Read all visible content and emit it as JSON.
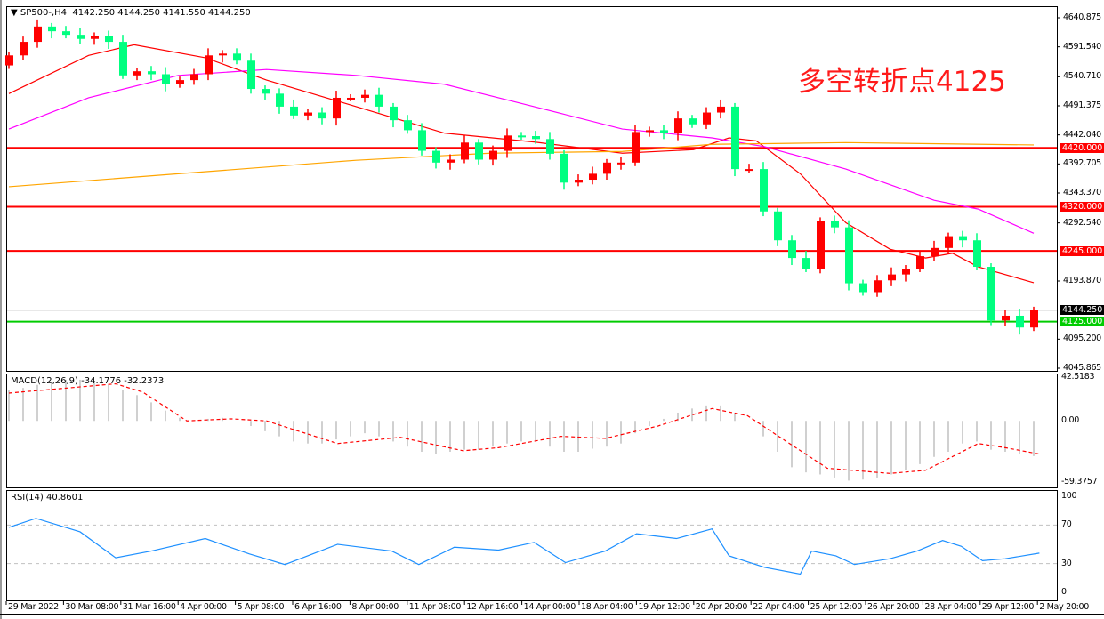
{
  "header": {
    "symbol": "SP500-,H4",
    "ohlc": "4142.250 4144.250 4141.550 4144.250"
  },
  "annotation": "多空转折点4125",
  "colors": {
    "bull": "#ff0000",
    "bear": "#00ff80",
    "ma_fast": "#ff0000",
    "ma_mid": "#ff00ff",
    "ma_slow": "#ffa500",
    "resistance": "#ff0000",
    "support": "#00cc00",
    "rsi": "#1e90ff",
    "macd_hist": "#c0c0c0",
    "macd_signal": "#ff0000"
  },
  "chart_data": [
    {
      "type": "candlestick",
      "title": "SP500-,H4",
      "price_axis": {
        "labels": [
          "4640.875",
          "4591.540",
          "4540.710",
          "4491.375",
          "4442.040",
          "4392.705",
          "4343.370",
          "4292.540",
          "4193.870",
          "4095.200",
          "4045.865"
        ],
        "range": [
          4045.865,
          4640.875
        ]
      },
      "time_axis": {
        "labels": [
          "29 Mar 2022",
          "30 Mar 08:00",
          "31 Mar 16:00",
          "4 Apr 00:00",
          "5 Apr 08:00",
          "6 Apr 16:00",
          "8 Apr 00:00",
          "11 Apr 08:00",
          "12 Apr 16:00",
          "14 Apr 00:00",
          "18 Apr 04:00",
          "19 Apr 12:00",
          "20 Apr 20:00",
          "22 Apr 04:00",
          "25 Apr 12:00",
          "26 Apr 20:00",
          "28 Apr 04:00",
          "29 Apr 12:00",
          "2 May 20:00"
        ]
      },
      "first_open": 4560,
      "closes": [
        4577,
        4600,
        4626,
        4618,
        4612,
        4605,
        4610,
        4600,
        4543,
        4550,
        4545,
        4528,
        4535,
        4545,
        4577,
        4580,
        4568,
        4520,
        4512,
        4490,
        4475,
        4480,
        4470,
        4505,
        4505,
        4510,
        4490,
        4467,
        4450,
        4415,
        4395,
        4400,
        4429,
        4400,
        4415,
        4441,
        4440,
        4435,
        4410,
        4361,
        4366,
        4376,
        4395,
        4395,
        4447,
        4450,
        4445,
        4470,
        4460,
        4480,
        4490,
        4384,
        4384,
        4312,
        4263,
        4233,
        4215,
        4296,
        4285,
        4190,
        4175,
        4195,
        4205,
        4215,
        4236,
        4250,
        4270,
        4263,
        4218,
        4127,
        4135,
        4115,
        4144.25
      ],
      "moving_averages": [
        {
          "bars": [
            0,
            5.6,
            8.8,
            13.8,
            18.1,
            24.4,
            30.6,
            36.9,
            43.1,
            48.1,
            50.6,
            52.5,
            55.6,
            58.8,
            61.9,
            64.4,
            66.3,
            68.1,
            72
          ],
          "values": [
            4512,
            4577,
            4595,
            4573,
            4535,
            4490,
            4445,
            4430,
            4411,
            4417,
            4437,
            4432,
            4376,
            4293,
            4248,
            4233,
            4241,
            4218,
            4191
          ]
        },
        {
          "bars": [
            0,
            5.6,
            11.9,
            18.1,
            24.4,
            30.6,
            36.9,
            43.1,
            49.4,
            53.1,
            58.8,
            65,
            68.1,
            72
          ],
          "values": [
            4452,
            4505,
            4543,
            4553,
            4543,
            4528,
            4490,
            4452,
            4437,
            4422,
            4384,
            4331,
            4316,
            4275
          ]
        },
        {
          "bars": [
            0,
            11.9,
            24.4,
            33.8,
            43.1,
            49.4,
            58.8,
            72
          ],
          "values": [
            4354,
            4376,
            4399,
            4411,
            4414,
            4426,
            4429,
            4425
          ]
        }
      ],
      "horizontal_lines": [
        {
          "price": 4420.0,
          "label": "4420.000",
          "kind": "resistance"
        },
        {
          "price": 4320.0,
          "label": "4320.000",
          "kind": "resistance"
        },
        {
          "price": 4245.0,
          "label": "4245.000",
          "kind": "resistance"
        },
        {
          "price": 4125.0,
          "label": "4125.000",
          "kind": "support"
        }
      ],
      "current_price": {
        "price": 4144.25,
        "label": "4144.250"
      }
    },
    {
      "type": "bar",
      "title": "MACD(12,26,9) -34.1776 -32.2373",
      "axis_labels": [
        "42.5183",
        "0.00",
        "-59.3757"
      ],
      "range": [
        -59.3757,
        42.5183
      ],
      "histogram": [
        30,
        32,
        35,
        38,
        40,
        40,
        38,
        35,
        30,
        25,
        18,
        10,
        3,
        0,
        2,
        3,
        0,
        -5,
        -10,
        -15,
        -20,
        -22,
        -22,
        -18,
        -15,
        -12,
        -15,
        -20,
        -25,
        -30,
        -32,
        -30,
        -28,
        -28,
        -25,
        -22,
        -20,
        -20,
        -25,
        -30,
        -30,
        -27,
        -25,
        -22,
        -12,
        -5,
        2,
        8,
        12,
        15,
        15,
        8,
        0,
        -15,
        -30,
        -45,
        -50,
        -52,
        -55,
        -58,
        -57,
        -55,
        -52,
        -48,
        -42,
        -35,
        -30,
        -22,
        -20,
        -28,
        -30,
        -32,
        -34.1776
      ],
      "signal": {
        "bars": [
          0,
          7.5,
          9.4,
          12.5,
          15.6,
          18.1,
          23.1,
          27.5,
          31.9,
          34.4,
          38.8,
          41.9,
          45.6,
          49.4,
          51.9,
          54.4,
          57.5,
          61.9,
          64.4,
          68.1,
          70,
          72.4
        ],
        "values": [
          27,
          36,
          28,
          0,
          2,
          0,
          -22,
          -16,
          -29,
          -26,
          -15,
          -17,
          -5,
          12,
          5,
          -18,
          -46,
          -51,
          -48,
          -22,
          -26,
          -32.2373
        ]
      }
    },
    {
      "type": "line",
      "title": "RSI(14) 40.8601",
      "axis_labels": [
        "100",
        "70",
        "30",
        "0"
      ],
      "levels": [
        70,
        30
      ],
      "range": [
        0,
        100
      ],
      "bars": [
        0,
        1.9,
        5,
        7.5,
        10,
        13.8,
        16.9,
        19.4,
        23.1,
        26.9,
        28.8,
        31.3,
        34.4,
        36.9,
        39.1,
        41.9,
        44.1,
        46.9,
        49.4,
        50.6,
        53.1,
        55.6,
        56.4,
        58.1,
        59.4,
        61.9,
        63.8,
        65.6,
        66.9,
        68.4,
        70,
        72.4
      ],
      "values": [
        67.6,
        77,
        63,
        36,
        43,
        56,
        40,
        29,
        50,
        43,
        29,
        47,
        44,
        52,
        31,
        43,
        61,
        56,
        66,
        38,
        26,
        19,
        43,
        38,
        29,
        35,
        43,
        54,
        48,
        33,
        35,
        40.86
      ]
    }
  ]
}
